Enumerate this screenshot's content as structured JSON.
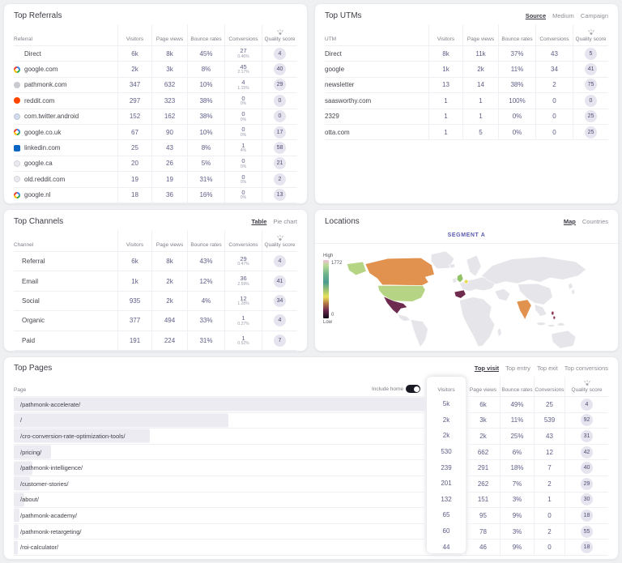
{
  "colors": {
    "accent_value": "#5d5d87",
    "badge_bg": "#e6e4ef"
  },
  "referrals": {
    "title": "Top Referrals",
    "columns": [
      "Referral",
      "Visitors",
      "Page views",
      "Bounce rates",
      "Conversions",
      "Quality score"
    ],
    "rows": [
      {
        "icon": "none",
        "label": "Direct",
        "visitors": "6k",
        "pageViews": "8k",
        "bounce": "45%",
        "conv": "27",
        "convPct": "0.46%",
        "score": "4"
      },
      {
        "icon": "google",
        "label": "google.com",
        "visitors": "2k",
        "pageViews": "3k",
        "bounce": "8%",
        "conv": "45",
        "convPct": "2.17%",
        "score": "40"
      },
      {
        "icon": "pathmonk",
        "label": "pathmonk.com",
        "visitors": "347",
        "pageViews": "632",
        "bounce": "10%",
        "conv": "4",
        "convPct": "1.15%",
        "score": "29"
      },
      {
        "icon": "reddit",
        "label": "reddit.com",
        "visitors": "297",
        "pageViews": "323",
        "bounce": "38%",
        "conv": "0",
        "convPct": "0%",
        "score": "0"
      },
      {
        "icon": "twitter",
        "label": "com.twitter.android",
        "visitors": "152",
        "pageViews": "162",
        "bounce": "38%",
        "conv": "0",
        "convPct": "0%",
        "score": "0"
      },
      {
        "icon": "google",
        "label": "google.co.uk",
        "visitors": "67",
        "pageViews": "90",
        "bounce": "10%",
        "conv": "0",
        "convPct": "0%",
        "score": "17"
      },
      {
        "icon": "linkedin",
        "label": "linkedin.com",
        "visitors": "25",
        "pageViews": "43",
        "bounce": "8%",
        "conv": "1",
        "convPct": "4%",
        "score": "58"
      },
      {
        "icon": "globe",
        "label": "google.ca",
        "visitors": "20",
        "pageViews": "26",
        "bounce": "5%",
        "conv": "0",
        "convPct": "0%",
        "score": "21"
      },
      {
        "icon": "globe",
        "label": "old.reddit.com",
        "visitors": "19",
        "pageViews": "19",
        "bounce": "31%",
        "conv": "0",
        "convPct": "0%",
        "score": "2"
      },
      {
        "icon": "google",
        "label": "google.nl",
        "visitors": "18",
        "pageViews": "36",
        "bounce": "16%",
        "conv": "0",
        "convPct": "0%",
        "score": "13"
      }
    ]
  },
  "utms": {
    "title": "Top UTMs",
    "tabs": [
      {
        "label": "Source",
        "active": true
      },
      {
        "label": "Medium",
        "active": false
      },
      {
        "label": "Campaign",
        "active": false
      }
    ],
    "columns": [
      "UTM",
      "Visitors",
      "Page views",
      "Bounce rates",
      "Conversions",
      "Quality score"
    ],
    "rows": [
      {
        "label": "Direct",
        "visitors": "8k",
        "pageViews": "11k",
        "bounce": "37%",
        "conv": "43",
        "score": "5"
      },
      {
        "label": "google",
        "visitors": "1k",
        "pageViews": "2k",
        "bounce": "11%",
        "conv": "34",
        "score": "41"
      },
      {
        "label": "newsletter",
        "visitors": "13",
        "pageViews": "14",
        "bounce": "38%",
        "conv": "2",
        "score": "75"
      },
      {
        "label": "saasworthy.com",
        "visitors": "1",
        "pageViews": "1",
        "bounce": "100%",
        "conv": "0",
        "score": "0"
      },
      {
        "label": "2329",
        "visitors": "1",
        "pageViews": "1",
        "bounce": "0%",
        "conv": "0",
        "score": "25"
      },
      {
        "label": "otta.com",
        "visitors": "1",
        "pageViews": "5",
        "bounce": "0%",
        "conv": "0",
        "score": "25"
      }
    ]
  },
  "channels": {
    "title": "Top Channels",
    "tabs": [
      {
        "label": "Table",
        "active": true
      },
      {
        "label": "Pie chart",
        "active": false
      }
    ],
    "columns": [
      "Channel",
      "Visitors",
      "Page views",
      "Bounce rates",
      "Conversions",
      "Quality score"
    ],
    "rows": [
      {
        "label": "Referral",
        "visitors": "6k",
        "pageViews": "8k",
        "bounce": "43%",
        "conv": "29",
        "convPct": "0.47%",
        "score": "4"
      },
      {
        "label": "Email",
        "visitors": "1k",
        "pageViews": "2k",
        "bounce": "12%",
        "conv": "36",
        "convPct": "2.59%",
        "score": "41"
      },
      {
        "label": "Social",
        "visitors": "935",
        "pageViews": "2k",
        "bounce": "4%",
        "conv": "12",
        "convPct": "1.28%",
        "score": "34"
      },
      {
        "label": "Organic",
        "visitors": "377",
        "pageViews": "494",
        "bounce": "33%",
        "conv": "1",
        "convPct": "0.27%",
        "score": "4"
      },
      {
        "label": "Paid",
        "visitors": "191",
        "pageViews": "224",
        "bounce": "31%",
        "conv": "1",
        "convPct": "0.52%",
        "score": "7"
      }
    ]
  },
  "locations": {
    "title": "Locations",
    "tabs": [
      {
        "label": "Map",
        "active": true
      },
      {
        "label": "Countries",
        "active": false
      }
    ],
    "segment_label": "SEGMENT A",
    "legend": {
      "high": "High",
      "low": "Low",
      "max": "1772",
      "min": "0"
    },
    "countries": [
      {
        "name": "Canada",
        "color": "#e2924f"
      },
      {
        "name": "United States",
        "color": "#b5d584"
      },
      {
        "name": "Mexico",
        "color": "#6e2b50"
      },
      {
        "name": "United Kingdom",
        "color": "#93c166"
      },
      {
        "name": "Netherlands",
        "color": "#e8da52"
      },
      {
        "name": "Spain",
        "color": "#702c4f"
      },
      {
        "name": "India",
        "color": "#e2924f"
      },
      {
        "name": "Philippines",
        "color": "#8e3750"
      }
    ]
  },
  "pages": {
    "title": "Top Pages",
    "tabs": [
      {
        "label": "Top visit",
        "active": true
      },
      {
        "label": "Top entry",
        "active": false
      },
      {
        "label": "Top exit",
        "active": false
      },
      {
        "label": "Top conversions",
        "active": false
      }
    ],
    "page_column": "Page",
    "include_home": {
      "label": "Include home",
      "on": true
    },
    "columns": [
      "Visitors",
      "Page views",
      "Bounce rates",
      "Conversions",
      "Quality score"
    ],
    "rows": [
      {
        "label": "/pathmonk-accelerate/",
        "bar": 100,
        "visitors": "5k",
        "pageViews": "6k",
        "bounce": "49%",
        "conv": "25",
        "score": "4"
      },
      {
        "label": "/",
        "bar": 52,
        "visitors": "2k",
        "pageViews": "3k",
        "bounce": "11%",
        "conv": "539",
        "score": "92"
      },
      {
        "label": "/cro-conversion-rate-optimization-tools/",
        "bar": 33,
        "visitors": "2k",
        "pageViews": "2k",
        "bounce": "25%",
        "conv": "43",
        "score": "31"
      },
      {
        "label": "/pricing/",
        "bar": 9,
        "visitors": "530",
        "pageViews": "662",
        "bounce": "6%",
        "conv": "12",
        "score": "42"
      },
      {
        "label": "/pathmonk-intelligence/",
        "bar": 4.6,
        "visitors": "239",
        "pageViews": "291",
        "bounce": "18%",
        "conv": "7",
        "score": "40"
      },
      {
        "label": "/customer-stories/",
        "bar": 3.9,
        "visitors": "201",
        "pageViews": "262",
        "bounce": "7%",
        "conv": "2",
        "score": "29"
      },
      {
        "label": "/about/",
        "bar": 2.6,
        "visitors": "132",
        "pageViews": "151",
        "bounce": "3%",
        "conv": "1",
        "score": "30"
      },
      {
        "label": "/pathmonk-academy/",
        "bar": 1.3,
        "visitors": "65",
        "pageViews": "95",
        "bounce": "9%",
        "conv": "0",
        "score": "18"
      },
      {
        "label": "/pathmonk-retargeting/",
        "bar": 1.2,
        "visitors": "60",
        "pageViews": "78",
        "bounce": "3%",
        "conv": "2",
        "score": "55"
      },
      {
        "label": "/roi-calculator/",
        "bar": 0.9,
        "visitors": "44",
        "pageViews": "46",
        "bounce": "9%",
        "conv": "0",
        "score": "18"
      }
    ]
  }
}
